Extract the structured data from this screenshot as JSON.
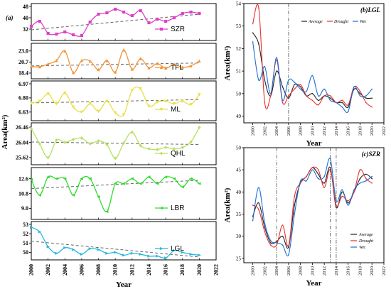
{
  "chart_data": [
    {
      "type": "line",
      "panel_label": "(a)",
      "xlabel": "Year",
      "ylabel": "Area(km²)",
      "xlim": [
        2000,
        2022
      ],
      "x_ticks": [
        "2000",
        "2002",
        "2004",
        "2006",
        "2008",
        "2010",
        "2012",
        "2014",
        "2016",
        "2018",
        "2020",
        "2022"
      ],
      "subplots": [
        {
          "name": "SZR",
          "color": "#e040c8",
          "marker": "square",
          "yticks": [
            "32",
            "40",
            "48"
          ],
          "ylim": [
            26,
            48
          ],
          "x": [
            2000,
            2001,
            2002,
            2003,
            2004,
            2005,
            2006,
            2007,
            2008,
            2009,
            2010,
            2011,
            2012,
            2013,
            2014,
            2015,
            2016,
            2017,
            2018,
            2019,
            2020
          ],
          "values": [
            34,
            37.5,
            29,
            28.5,
            30,
            28,
            27.5,
            37,
            42.5,
            43.5,
            46,
            44,
            41.5,
            45,
            36.5,
            39,
            37.5,
            40,
            43,
            44,
            43
          ],
          "trend": [
            [
              2000,
              31.5
            ],
            [
              2020,
              42.5
            ]
          ]
        },
        {
          "name": "TFL",
          "color": "#f0953a",
          "marker": "triangle",
          "yticks": [
            "18.4",
            "20.7",
            "23.0"
          ],
          "ylim": [
            17.8,
            24.0
          ],
          "x": [
            2000,
            2001,
            2002,
            2003,
            2004,
            2005,
            2006,
            2007,
            2008,
            2009,
            2010,
            2011,
            2012,
            2013,
            2014,
            2015,
            2016,
            2017,
            2018,
            2019,
            2020
          ],
          "values": [
            19.8,
            19.7,
            20.3,
            21.0,
            23.0,
            18.5,
            21.0,
            20.9,
            19.1,
            21.0,
            18.6,
            23.2,
            19.2,
            21.4,
            19.5,
            20.4,
            19.4,
            20.2,
            19.6,
            19.9,
            20.9
          ],
          "trend": [
            [
              2000,
              19.9
            ],
            [
              2020,
              20.5
            ]
          ]
        },
        {
          "name": "ML",
          "color": "#e8e048",
          "marker": "triangle-down",
          "yticks": [
            "6.63",
            "6.80",
            "6.97"
          ],
          "ylim": [
            6.56,
            6.97
          ],
          "x": [
            2000,
            2001,
            2002,
            2003,
            2004,
            2005,
            2006,
            2007,
            2008,
            2009,
            2010,
            2011,
            2012,
            2013,
            2014,
            2015,
            2016,
            2017,
            2018,
            2019,
            2020
          ],
          "values": [
            6.74,
            6.76,
            6.85,
            6.73,
            6.86,
            6.69,
            6.63,
            6.73,
            6.64,
            6.76,
            6.62,
            6.6,
            6.89,
            6.91,
            6.7,
            6.75,
            6.76,
            6.73,
            6.76,
            6.72,
            6.84
          ],
          "trend": [
            [
              2000,
              6.74
            ],
            [
              2020,
              6.78
            ]
          ]
        },
        {
          "name": "QHL",
          "color": "#b8e060",
          "marker": "diamond",
          "yticks": [
            "25.62",
            "26.04",
            "26.46"
          ],
          "ylim": [
            25.5,
            26.5
          ],
          "x": [
            2000,
            2001,
            2002,
            2003,
            2004,
            2005,
            2006,
            2007,
            2008,
            2009,
            2010,
            2011,
            2012,
            2013,
            2014,
            2015,
            2016,
            2017,
            2018,
            2019,
            2020
          ],
          "values": [
            26.42,
            26.0,
            25.62,
            26.1,
            26.04,
            26.12,
            26.16,
            26.0,
            26.08,
            25.98,
            25.6,
            26.02,
            26.32,
            25.95,
            25.86,
            25.84,
            25.9,
            25.86,
            25.9,
            26.05,
            26.45
          ],
          "trend": [
            [
              2000,
              26.05
            ],
            [
              2020,
              25.98
            ]
          ]
        },
        {
          "name": "LBR",
          "color": "#30dc30",
          "marker": "triangle-left",
          "yticks": [
            "9.0",
            "10.8",
            "12.6"
          ],
          "ylim": [
            8.0,
            13.6
          ],
          "x": [
            2000,
            2001,
            2002,
            2003,
            2004,
            2005,
            2006,
            2007,
            2008,
            2009,
            2010,
            2011,
            2012,
            2013,
            2014,
            2015,
            2016,
            2017,
            2018,
            2019,
            2020
          ],
          "values": [
            12.5,
            10.6,
            12.8,
            12.6,
            12.6,
            10.6,
            12.6,
            12.6,
            10.4,
            8.6,
            12.0,
            12.0,
            12.6,
            12.0,
            12.8,
            12.0,
            12.8,
            12.6,
            11.6,
            12.6,
            12.0
          ],
          "trend": [
            [
              2000,
              11.4
            ],
            [
              2020,
              12.4
            ]
          ]
        },
        {
          "name": "LGL",
          "color": "#25b8e0",
          "marker": "triangle-right",
          "yticks": [
            "50",
            "51",
            "52",
            "53"
          ],
          "ylim": [
            49.5,
            53.0
          ],
          "x": [
            2000,
            2001,
            2002,
            2003,
            2004,
            2005,
            2006,
            2007,
            2008,
            2009,
            2010,
            2011,
            2012,
            2013,
            2014,
            2015,
            2016,
            2017,
            2018,
            2019,
            2020
          ],
          "values": [
            52.7,
            52.2,
            50.6,
            49.9,
            50.5,
            50.3,
            49.8,
            50.4,
            50.3,
            49.9,
            50.0,
            49.7,
            49.9,
            49.8,
            49.6,
            49.6,
            49.4,
            50.2,
            50.0,
            49.8,
            49.7
          ],
          "trend": [
            [
              2000,
              51.2
            ],
            [
              2020,
              49.5
            ]
          ]
        }
      ]
    },
    {
      "type": "line",
      "panel_label": "(b)LGL",
      "xlabel": "Year",
      "ylabel": "Area(km²)",
      "xlim": [
        1998.5,
        2022
      ],
      "x_ticks": [
        "2000",
        "2002",
        "2004",
        "2006",
        "2008",
        "2010",
        "2012",
        "2014",
        "2016",
        "2018",
        "2020",
        "2022"
      ],
      "ylim": [
        48.7,
        54
      ],
      "y_ticks": [
        "49",
        "50",
        "51",
        "52",
        "53",
        "54"
      ],
      "vlines": [
        2006
      ],
      "legend": [
        "Average",
        "Drought",
        "Wet"
      ],
      "x": [
        2000,
        2001,
        2002,
        2003,
        2004,
        2005,
        2006,
        2007,
        2008,
        2009,
        2010,
        2011,
        2012,
        2013,
        2014,
        2015,
        2016,
        2017,
        2018,
        2019,
        2020
      ],
      "series": [
        {
          "name": "Average",
          "color": "#222222",
          "values": [
            52.7,
            52.2,
            50.6,
            49.9,
            51.0,
            50.3,
            49.8,
            50.4,
            50.3,
            49.9,
            50.0,
            49.7,
            49.9,
            49.8,
            49.6,
            49.6,
            49.4,
            50.2,
            50.0,
            49.8,
            49.8
          ]
        },
        {
          "name": "Drought",
          "color": "#e83030",
          "values": [
            53.1,
            53.8,
            49.6,
            49.9,
            51.5,
            49.6,
            49.9,
            50.2,
            50.4,
            49.9,
            49.7,
            49.5,
            49.9,
            49.9,
            49.6,
            49.7,
            49.5,
            50.3,
            50.1,
            49.6,
            49.4
          ]
        },
        {
          "name": "Wet",
          "color": "#1e6fd0",
          "values": [
            52.3,
            50.6,
            51.2,
            50.0,
            51.6,
            49.7,
            50.6,
            50.5,
            50.2,
            50.1,
            50.8,
            49.9,
            50.2,
            49.7,
            49.6,
            49.4,
            49.2,
            50.3,
            49.9,
            49.9,
            50.2
          ]
        }
      ]
    },
    {
      "type": "line",
      "panel_label": "(c)SZR",
      "xlabel": "Year",
      "ylabel": "Area(km²)",
      "xlim": [
        1998.5,
        2022
      ],
      "x_ticks": [
        "2000",
        "2002",
        "2004",
        "2006",
        "2008",
        "2010",
        "2012",
        "2014",
        "2016",
        "2018",
        "2020",
        "2022"
      ],
      "ylim": [
        24,
        50
      ],
      "y_ticks": [
        "25",
        "30",
        "35",
        "40",
        "45",
        "50"
      ],
      "vlines": [
        2004,
        2013,
        2014
      ],
      "legend": [
        "Average",
        "Drought",
        "Wet"
      ],
      "x": [
        2000,
        2001,
        2002,
        2003,
        2004,
        2005,
        2006,
        2007,
        2008,
        2009,
        2010,
        2011,
        2012,
        2013,
        2014,
        2015,
        2016,
        2017,
        2018,
        2019,
        2020
      ],
      "series": [
        {
          "name": "Average",
          "color": "#222222",
          "values": [
            34.5,
            37.5,
            32.0,
            28.5,
            28.8,
            30.0,
            27.5,
            37.0,
            42.0,
            43.5,
            45.5,
            44.0,
            42.0,
            45.5,
            36.5,
            40.0,
            37.5,
            40.0,
            43.0,
            44.0,
            43.0
          ]
        },
        {
          "name": "Drought",
          "color": "#e83030",
          "values": [
            37.0,
            36.0,
            31.0,
            28.0,
            28.0,
            32.5,
            27.8,
            39.0,
            42.0,
            43.5,
            45.5,
            45.0,
            41.0,
            45.0,
            37.0,
            39.0,
            38.0,
            40.0,
            45.0,
            43.0,
            42.0
          ]
        },
        {
          "name": "Wet",
          "color": "#1e6fd0",
          "values": [
            33.5,
            41.0,
            33.0,
            29.0,
            28.5,
            28.0,
            25.8,
            35.0,
            42.5,
            42.5,
            45.0,
            43.0,
            43.5,
            47.5,
            38.0,
            40.5,
            37.0,
            40.5,
            42.0,
            42.5,
            43.5
          ]
        }
      ]
    }
  ]
}
